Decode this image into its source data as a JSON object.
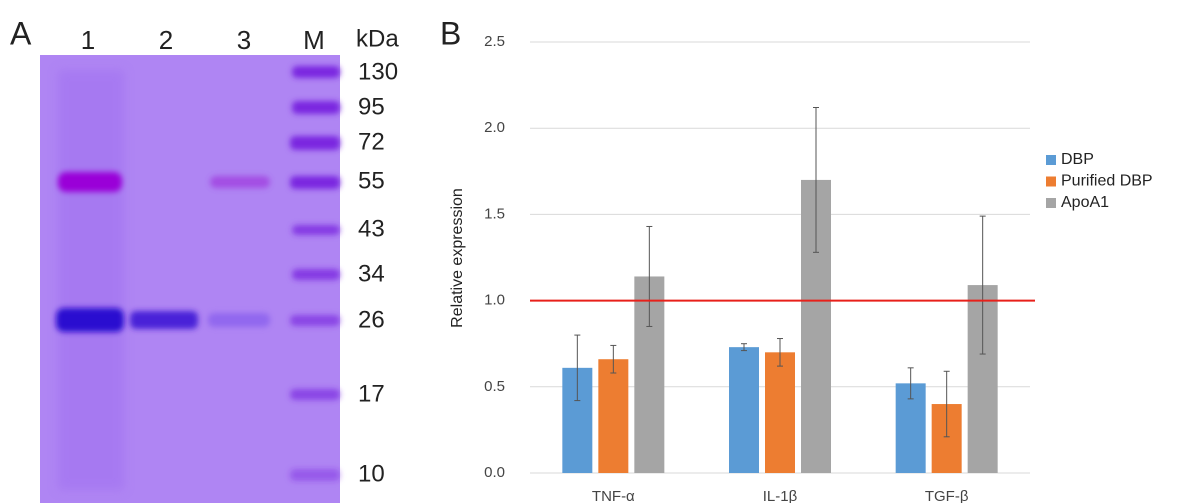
{
  "gel": {
    "label": "A",
    "lanes": [
      "1",
      "2",
      "3",
      "M"
    ],
    "unit": "kDa",
    "markers": [
      130,
      95,
      72,
      55,
      43,
      34,
      26,
      17,
      10
    ]
  },
  "chart_data": {
    "type": "bar",
    "label": "B",
    "y_label": "Relative expression",
    "categories": [
      "TNF-α",
      "IL-1β",
      "TGF-β"
    ],
    "series": [
      {
        "name": "DBP",
        "color": "#5b9bd5",
        "values": [
          0.61,
          0.73,
          0.52
        ],
        "errors": [
          0.19,
          0.02,
          0.09
        ]
      },
      {
        "name": "Purified DBP",
        "color": "#ed7d31",
        "values": [
          0.66,
          0.7,
          0.4
        ],
        "errors": [
          0.08,
          0.08,
          0.19
        ]
      },
      {
        "name": "ApoA1",
        "color": "#a5a5a5",
        "values": [
          1.14,
          1.7,
          1.09
        ],
        "errors": [
          0.29,
          0.42,
          0.4
        ]
      }
    ],
    "ylim": [
      0,
      2.5
    ],
    "yticks": [
      {
        "value": 0,
        "label": "0.0"
      },
      0.5,
      {
        "value": 1,
        "label": "1.0"
      },
      1.5,
      {
        "value": 2,
        "label": "2.0"
      },
      2.5
    ],
    "grid": true,
    "reference_line": 1,
    "reference_color": "#e8201a",
    "legend": "right"
  }
}
